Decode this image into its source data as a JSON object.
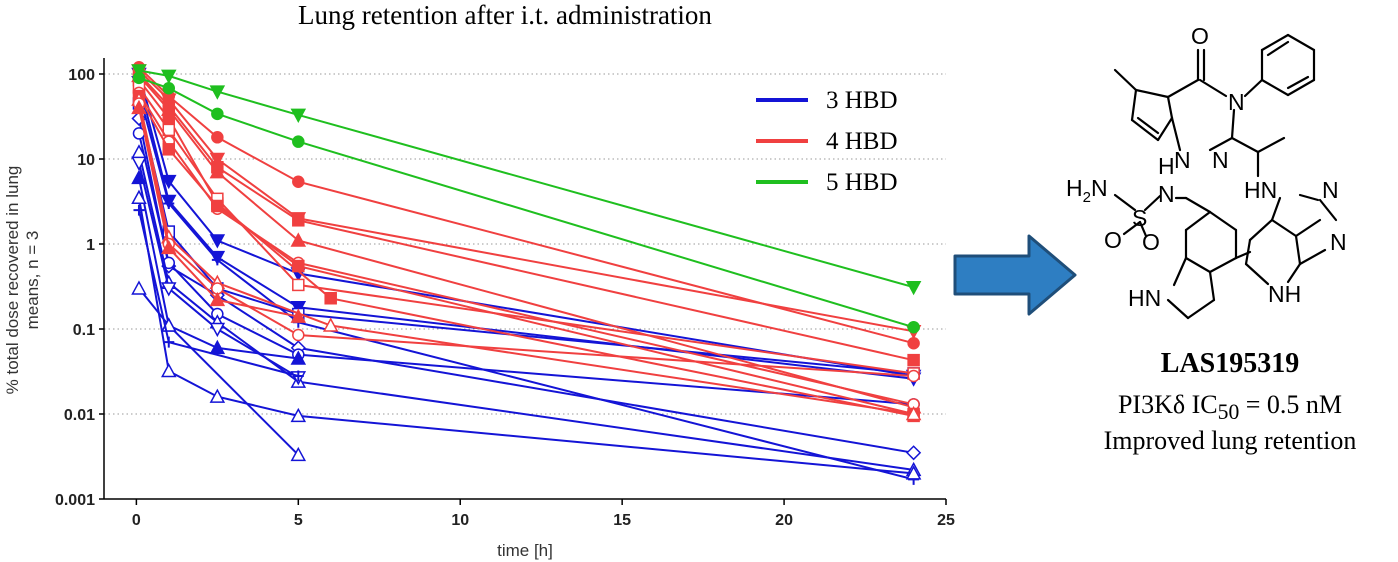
{
  "chart_data": {
    "type": "line",
    "title": "Lung retention after i.t. administration",
    "xlabel": "time [h]",
    "ylabel": "% total dose recovered in lung means, n = 3",
    "ylabel_lines": [
      "% total dose recovered in lung",
      "means, n = 3"
    ],
    "xlim": [
      -1,
      25
    ],
    "ylim": [
      0.001,
      200
    ],
    "yscale": "log",
    "x_ticks": [
      0,
      5,
      10,
      15,
      20,
      25
    ],
    "x_tick_labels": [
      "0",
      "5",
      "10",
      "15",
      "20",
      "25"
    ],
    "y_ticks": [
      0.001,
      0.01,
      0.1,
      1,
      10,
      100
    ],
    "y_tick_labels": [
      "0.001",
      "0.01",
      "0.1",
      "1",
      "10",
      "100"
    ],
    "grid": "horizontal dotted",
    "legend_position": "top-right",
    "legend": [
      {
        "label": "3 HBD",
        "color": "#1414d6"
      },
      {
        "label": "4 HBD",
        "color": "#f04040"
      },
      {
        "label": "5 HBD",
        "color": "#1fbf1f"
      }
    ],
    "series": [
      {
        "group": "5 HBD",
        "color": "#1fbf1f",
        "marker": "triangle-down",
        "x": [
          0.08,
          1,
          2.5,
          5,
          24
        ],
        "y": [
          110,
          95,
          62,
          33,
          0.31
        ]
      },
      {
        "group": "5 HBD",
        "color": "#1fbf1f",
        "marker": "circle",
        "x": [
          0.08,
          1,
          2.5,
          5,
          24
        ],
        "y": [
          90,
          68,
          34,
          16,
          0.105
        ]
      },
      {
        "group": "4 HBD",
        "color": "#f04040",
        "marker": "circle",
        "x": [
          0.08,
          1,
          2.5,
          5,
          24
        ],
        "y": [
          120,
          55,
          18,
          5.4,
          0.068
        ]
      },
      {
        "group": "4 HBD",
        "color": "#f04040",
        "marker": "triangle-down",
        "x": [
          0.08,
          1,
          2.5,
          5,
          24
        ],
        "y": [
          110,
          50,
          10,
          2.0,
          0.094
        ]
      },
      {
        "group": "4 HBD",
        "color": "#f04040",
        "marker": "square",
        "x": [
          0.08,
          1,
          2.5,
          5,
          24
        ],
        "y": [
          100,
          42,
          8,
          1.9,
          0.043
        ]
      },
      {
        "group": "4 HBD",
        "color": "#f04040",
        "marker": "triangle",
        "x": [
          0.08,
          1,
          2.5,
          5,
          24
        ],
        "y": [
          95,
          38,
          7,
          1.1,
          0.012
        ]
      },
      {
        "group": "4 HBD",
        "color": "#f04040",
        "marker": "square",
        "x": [
          0.08,
          1,
          2.5,
          6,
          24
        ],
        "y": [
          85,
          30,
          3.0,
          0.23,
          0.0095
        ]
      },
      {
        "group": "4 HBD",
        "color": "#f04040",
        "marker": "square-open",
        "x": [
          0.08,
          1,
          2.5,
          5,
          24
        ],
        "y": [
          70,
          22,
          3.4,
          0.33,
          0.03
        ]
      },
      {
        "group": "4 HBD",
        "color": "#f04040",
        "marker": "circle-open",
        "x": [
          0.08,
          1,
          2.5,
          5,
          24
        ],
        "y": [
          60,
          16,
          2.6,
          0.6,
          0.013
        ]
      },
      {
        "group": "4 HBD",
        "color": "#f04040",
        "marker": "square",
        "x": [
          0.08,
          1,
          2.5,
          5,
          24
        ],
        "y": [
          55,
          13,
          2.8,
          0.55,
          0.01
        ]
      },
      {
        "group": "4 HBD",
        "color": "#f04040",
        "marker": "triangle-open",
        "x": [
          0.08,
          1,
          2.5,
          6,
          24
        ],
        "y": [
          50,
          1.2,
          0.35,
          0.11,
          0.01
        ]
      },
      {
        "group": "4 HBD",
        "color": "#f04040",
        "marker": "circle-open",
        "x": [
          0.08,
          1,
          2.5,
          5,
          24
        ],
        "y": [
          45,
          1.0,
          0.3,
          0.085,
          0.028
        ]
      },
      {
        "group": "4 HBD",
        "color": "#f04040",
        "marker": "triangle",
        "x": [
          0.08,
          1,
          2.5,
          5
        ],
        "y": [
          40,
          0.9,
          0.22,
          0.14
        ]
      },
      {
        "group": "3 HBD",
        "color": "#1414d6",
        "marker": "triangle-down",
        "x": [
          0.08,
          1,
          2.5,
          5,
          24
        ],
        "y": [
          100,
          5.5,
          1.1,
          0.45,
          0.028
        ]
      },
      {
        "group": "3 HBD",
        "color": "#1414d6",
        "marker": "triangle-down",
        "x": [
          0.08,
          1,
          2.5,
          5,
          24
        ],
        "y": [
          80,
          3.2,
          0.7,
          0.18,
          0.026
        ]
      },
      {
        "group": "3 HBD",
        "color": "#1414d6",
        "marker": "cross",
        "x": [
          0.08,
          1,
          2.5,
          5,
          24
        ],
        "y": [
          60,
          3.0,
          0.65,
          0.12,
          0.0017
        ]
      },
      {
        "group": "3 HBD",
        "color": "#1414d6",
        "marker": "square-open",
        "x": [
          0.08,
          1,
          2.5,
          5,
          24
        ],
        "y": [
          45,
          1.4,
          0.3,
          0.15,
          0.03
        ]
      },
      {
        "group": "3 HBD",
        "color": "#1414d6",
        "marker": "diamond-open",
        "x": [
          0.08,
          1,
          2.5,
          5,
          24
        ],
        "y": [
          30,
          0.55,
          0.25,
          0.06,
          0.0035
        ]
      },
      {
        "group": "3 HBD",
        "color": "#1414d6",
        "marker": "circle-open",
        "x": [
          0.08,
          1,
          2.5,
          5,
          24
        ],
        "y": [
          20,
          0.6,
          0.15,
          0.05,
          0.013
        ]
      },
      {
        "group": "3 HBD",
        "color": "#1414d6",
        "marker": "triangle-open",
        "x": [
          0.08,
          1,
          2.5,
          5,
          24
        ],
        "y": [
          12,
          0.35,
          0.12,
          0.024,
          0.0022
        ]
      },
      {
        "group": "3 HBD",
        "color": "#1414d6",
        "marker": "triangle-down-open",
        "x": [
          0.08,
          1,
          2.5,
          5
        ],
        "y": [
          9,
          0.3,
          0.1,
          0.027
        ]
      },
      {
        "group": "3 HBD",
        "color": "#1414d6",
        "marker": "triangle",
        "x": [
          0.08,
          1,
          2.5,
          5
        ],
        "y": [
          6,
          0.11,
          0.06,
          0.045
        ]
      },
      {
        "group": "3 HBD",
        "color": "#1414d6",
        "marker": "triangle-open",
        "x": [
          0.08,
          1,
          2.5,
          5,
          24
        ],
        "y": [
          3.5,
          0.032,
          0.016,
          0.0095,
          0.002
        ]
      },
      {
        "group": "3 HBD",
        "color": "#1414d6",
        "marker": "triangle-open",
        "x": [
          0.08,
          1,
          5
        ],
        "y": [
          0.3,
          0.11,
          0.0033
        ]
      },
      {
        "group": "3 HBD",
        "color": "#1414d6",
        "marker": "cross",
        "x": [
          0.08,
          1,
          5
        ],
        "y": [
          2.5,
          0.07,
          0.028
        ]
      }
    ]
  },
  "compound": {
    "name": "LAS195319",
    "ic50_prefix": "PI3Kδ IC",
    "ic50_sub": "50",
    "ic50_suffix": " = 0.5 nM",
    "note": "Improved lung retention"
  },
  "structure_labels": {
    "o_top": "O",
    "n_amide": "N",
    "n_tri1": "N",
    "n_tri2": "N",
    "nh_link": "HN",
    "h2n": "H",
    "h2n_sub": "2",
    "h2n_n": "N",
    "s": "S",
    "n_sulfonyl": "N",
    "h_sulfonyl": "H",
    "o_s1": "O",
    "o_s2": "O",
    "n_pyr1": "N",
    "n_pyr2": "N",
    "hn_indole": "HN",
    "nh_pyrrole": "NH"
  },
  "colors": {
    "arrow_fill": "#2e7ec2",
    "arrow_stroke": "#1f4e79"
  }
}
